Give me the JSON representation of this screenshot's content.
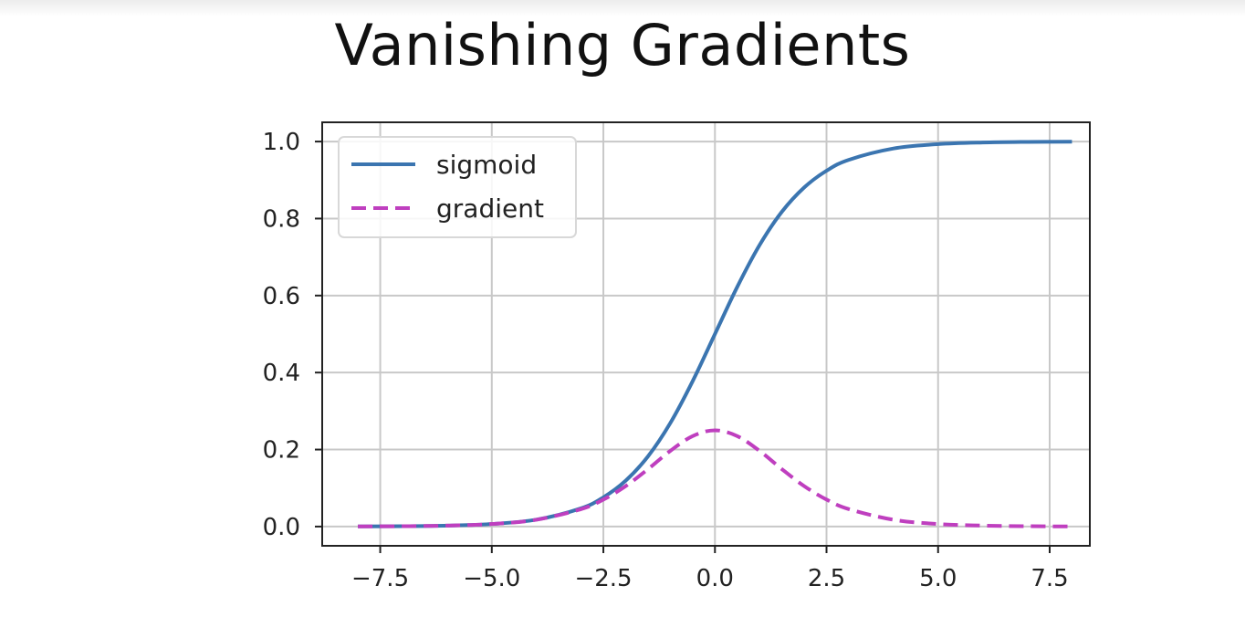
{
  "slide": {
    "title": "Vanishing Gradients"
  },
  "chart_data": {
    "type": "line",
    "title": "",
    "xlabel": "",
    "ylabel": "",
    "xlim": [
      -8.8,
      8.4
    ],
    "ylim": [
      -0.05,
      1.05
    ],
    "grid": true,
    "legend_position": "top-left",
    "x_ticks": [
      -7.5,
      -5.0,
      -2.5,
      0.0,
      2.5,
      5.0,
      7.5
    ],
    "x_tick_labels": [
      "−7.5",
      "−5.0",
      "−2.5",
      "0.0",
      "2.5",
      "5.0",
      "7.5"
    ],
    "y_ticks": [
      0.0,
      0.2,
      0.4,
      0.6,
      0.8,
      1.0
    ],
    "y_tick_labels": [
      "0.0",
      "0.2",
      "0.4",
      "0.6",
      "0.8",
      "1.0"
    ],
    "series": [
      {
        "name": "sigmoid",
        "color": "#3b75b0",
        "style": "solid",
        "x": [
          -8,
          -7,
          -6,
          -5,
          -4,
          -3,
          -2.5,
          -2,
          -1.5,
          -1,
          -0.5,
          0,
          0.5,
          1,
          1.5,
          2,
          2.5,
          3,
          4,
          5,
          6,
          7,
          8
        ],
        "y": [
          0.0003,
          0.0009,
          0.0025,
          0.0067,
          0.018,
          0.0474,
          0.0759,
          0.1192,
          0.1824,
          0.2689,
          0.3775,
          0.5,
          0.6225,
          0.7311,
          0.8176,
          0.8808,
          0.9241,
          0.9526,
          0.982,
          0.9933,
          0.9975,
          0.9991,
          0.9997
        ]
      },
      {
        "name": "gradient",
        "color": "#bf3fbf",
        "style": "dashed",
        "x": [
          -8,
          -7,
          -6,
          -5,
          -4,
          -3,
          -2.5,
          -2,
          -1.5,
          -1,
          -0.5,
          0,
          0.5,
          1,
          1.5,
          2,
          2.5,
          3,
          4,
          5,
          6,
          7,
          8
        ],
        "y": [
          0.0003,
          0.0009,
          0.0025,
          0.0066,
          0.0177,
          0.0452,
          0.0701,
          0.105,
          0.1491,
          0.1966,
          0.235,
          0.25,
          0.235,
          0.1966,
          0.1491,
          0.105,
          0.0701,
          0.0452,
          0.0177,
          0.0066,
          0.0025,
          0.0009,
          0.0003
        ]
      }
    ]
  }
}
